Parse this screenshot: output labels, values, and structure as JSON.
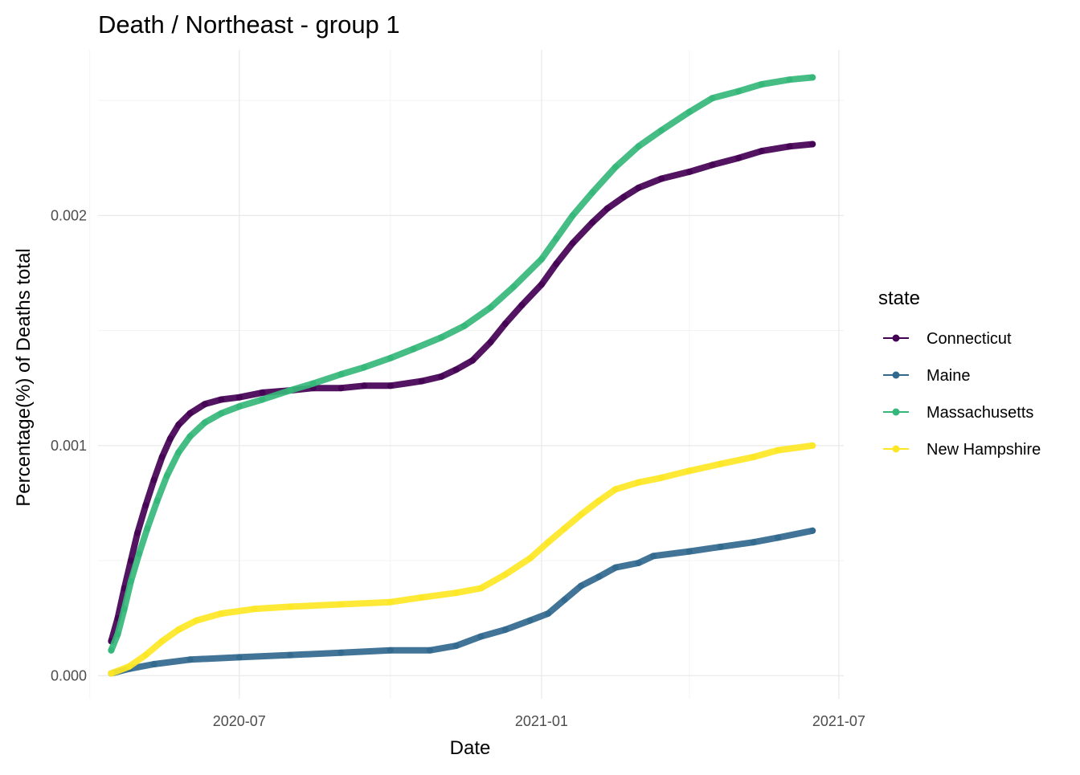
{
  "chart_data": {
    "type": "line",
    "title": "Death / Northeast - group 1",
    "xlabel": "Date",
    "ylabel": "Percentage(%) of Deaths total",
    "x_type": "date",
    "xlim": [
      "2020-04-06",
      "2021-07-04"
    ],
    "ylim": [
      -0.0001,
      0.00272
    ],
    "x_ticks": [
      {
        "value": "2020-07-01",
        "label": "2020-07"
      },
      {
        "value": "2021-01-01",
        "label": "2021-01"
      },
      {
        "value": "2021-07-01",
        "label": "2021-07"
      }
    ],
    "x_minor_ticks": [
      "2020-04-01",
      "2020-10-01",
      "2021-04-01"
    ],
    "y_ticks": [
      {
        "value": 0,
        "label": "0.000"
      },
      {
        "value": 0.001,
        "label": "0.001"
      },
      {
        "value": 0.002,
        "label": "0.002"
      }
    ],
    "y_minor_ticks": [
      0.0005,
      0.0015,
      0.0025
    ],
    "grid": true,
    "legend": {
      "title": "state",
      "position": "right"
    },
    "series": [
      {
        "name": "Connecticut",
        "color": "#440154",
        "points": [
          [
            "2020-04-14",
            0.00015
          ],
          [
            "2020-04-18",
            0.00025
          ],
          [
            "2020-04-22",
            0.00038
          ],
          [
            "2020-04-26",
            0.0005
          ],
          [
            "2020-04-30",
            0.00062
          ],
          [
            "2020-05-05",
            0.00074
          ],
          [
            "2020-05-10",
            0.00085
          ],
          [
            "2020-05-15",
            0.00095
          ],
          [
            "2020-05-20",
            0.00103
          ],
          [
            "2020-05-25",
            0.00109
          ],
          [
            "2020-06-01",
            0.00114
          ],
          [
            "2020-06-10",
            0.00118
          ],
          [
            "2020-06-20",
            0.0012
          ],
          [
            "2020-07-01",
            0.00121
          ],
          [
            "2020-07-15",
            0.00123
          ],
          [
            "2020-08-01",
            0.00124
          ],
          [
            "2020-08-15",
            0.00125
          ],
          [
            "2020-09-01",
            0.00125
          ],
          [
            "2020-09-15",
            0.00126
          ],
          [
            "2020-10-01",
            0.00126
          ],
          [
            "2020-10-20",
            0.00128
          ],
          [
            "2020-11-01",
            0.0013
          ],
          [
            "2020-11-10",
            0.00133
          ],
          [
            "2020-11-20",
            0.00137
          ],
          [
            "2020-12-01",
            0.00145
          ],
          [
            "2020-12-10",
            0.00153
          ],
          [
            "2020-12-20",
            0.00161
          ],
          [
            "2021-01-01",
            0.0017
          ],
          [
            "2021-01-10",
            0.00179
          ],
          [
            "2021-01-20",
            0.00188
          ],
          [
            "2021-02-01",
            0.00197
          ],
          [
            "2021-02-10",
            0.00203
          ],
          [
            "2021-02-20",
            0.00208
          ],
          [
            "2021-03-01",
            0.00212
          ],
          [
            "2021-03-15",
            0.00216
          ],
          [
            "2021-04-01",
            0.00219
          ],
          [
            "2021-04-15",
            0.00222
          ],
          [
            "2021-05-01",
            0.00225
          ],
          [
            "2021-05-15",
            0.00228
          ],
          [
            "2021-06-01",
            0.0023
          ],
          [
            "2021-06-15",
            0.00231
          ]
        ]
      },
      {
        "name": "Maine",
        "color": "#31688e",
        "points": [
          [
            "2020-04-14",
            1e-05
          ],
          [
            "2020-04-25",
            3e-05
          ],
          [
            "2020-05-10",
            5e-05
          ],
          [
            "2020-06-01",
            7e-05
          ],
          [
            "2020-07-01",
            8e-05
          ],
          [
            "2020-08-01",
            9e-05
          ],
          [
            "2020-09-01",
            0.0001
          ],
          [
            "2020-10-01",
            0.00011
          ],
          [
            "2020-10-25",
            0.00011
          ],
          [
            "2020-11-10",
            0.00013
          ],
          [
            "2020-11-25",
            0.00017
          ],
          [
            "2020-12-10",
            0.0002
          ],
          [
            "2020-12-25",
            0.00024
          ],
          [
            "2021-01-05",
            0.00027
          ],
          [
            "2021-01-15",
            0.00033
          ],
          [
            "2021-01-25",
            0.00039
          ],
          [
            "2021-02-05",
            0.00043
          ],
          [
            "2021-02-15",
            0.00047
          ],
          [
            "2021-03-01",
            0.00049
          ],
          [
            "2021-03-10",
            0.00052
          ],
          [
            "2021-04-01",
            0.00054
          ],
          [
            "2021-04-20",
            0.00056
          ],
          [
            "2021-05-10",
            0.00058
          ],
          [
            "2021-05-25",
            0.0006
          ],
          [
            "2021-06-15",
            0.00063
          ]
        ]
      },
      {
        "name": "Massachusetts",
        "color": "#35b779",
        "points": [
          [
            "2020-04-14",
            0.00011
          ],
          [
            "2020-04-18",
            0.00018
          ],
          [
            "2020-04-22",
            0.00029
          ],
          [
            "2020-04-26",
            0.00041
          ],
          [
            "2020-05-01",
            0.00053
          ],
          [
            "2020-05-06",
            0.00064
          ],
          [
            "2020-05-12",
            0.00076
          ],
          [
            "2020-05-18",
            0.00087
          ],
          [
            "2020-05-25",
            0.00097
          ],
          [
            "2020-06-01",
            0.00104
          ],
          [
            "2020-06-10",
            0.0011
          ],
          [
            "2020-06-20",
            0.00114
          ],
          [
            "2020-07-01",
            0.00117
          ],
          [
            "2020-07-15",
            0.0012
          ],
          [
            "2020-08-01",
            0.00124
          ],
          [
            "2020-08-15",
            0.00127
          ],
          [
            "2020-09-01",
            0.00131
          ],
          [
            "2020-09-15",
            0.00134
          ],
          [
            "2020-10-01",
            0.00138
          ],
          [
            "2020-10-15",
            0.00142
          ],
          [
            "2020-11-01",
            0.00147
          ],
          [
            "2020-11-15",
            0.00152
          ],
          [
            "2020-12-01",
            0.0016
          ],
          [
            "2020-12-15",
            0.00169
          ],
          [
            "2021-01-01",
            0.00181
          ],
          [
            "2021-01-10",
            0.0019
          ],
          [
            "2021-01-20",
            0.002
          ],
          [
            "2021-02-01",
            0.0021
          ],
          [
            "2021-02-15",
            0.00221
          ],
          [
            "2021-03-01",
            0.0023
          ],
          [
            "2021-03-15",
            0.00237
          ],
          [
            "2021-04-01",
            0.00245
          ],
          [
            "2021-04-15",
            0.00251
          ],
          [
            "2021-05-01",
            0.00254
          ],
          [
            "2021-05-15",
            0.00257
          ],
          [
            "2021-06-01",
            0.00259
          ],
          [
            "2021-06-15",
            0.0026
          ]
        ]
      },
      {
        "name": "New Hampshire",
        "color": "#fde725",
        "points": [
          [
            "2020-04-14",
            1e-05
          ],
          [
            "2020-04-25",
            4e-05
          ],
          [
            "2020-05-05",
            9e-05
          ],
          [
            "2020-05-15",
            0.00015
          ],
          [
            "2020-05-25",
            0.0002
          ],
          [
            "2020-06-05",
            0.00024
          ],
          [
            "2020-06-20",
            0.00027
          ],
          [
            "2020-07-10",
            0.00029
          ],
          [
            "2020-08-01",
            0.0003
          ],
          [
            "2020-09-01",
            0.00031
          ],
          [
            "2020-10-01",
            0.00032
          ],
          [
            "2020-10-20",
            0.00034
          ],
          [
            "2020-11-10",
            0.00036
          ],
          [
            "2020-11-25",
            0.00038
          ],
          [
            "2020-12-10",
            0.00044
          ],
          [
            "2020-12-25",
            0.00051
          ],
          [
            "2021-01-05",
            0.00058
          ],
          [
            "2021-01-15",
            0.00064
          ],
          [
            "2021-01-25",
            0.0007
          ],
          [
            "2021-02-05",
            0.00076
          ],
          [
            "2021-02-15",
            0.00081
          ],
          [
            "2021-03-01",
            0.00084
          ],
          [
            "2021-03-15",
            0.00086
          ],
          [
            "2021-04-01",
            0.00089
          ],
          [
            "2021-04-20",
            0.00092
          ],
          [
            "2021-05-10",
            0.00095
          ],
          [
            "2021-05-25",
            0.00098
          ],
          [
            "2021-06-15",
            0.001
          ]
        ]
      }
    ]
  }
}
